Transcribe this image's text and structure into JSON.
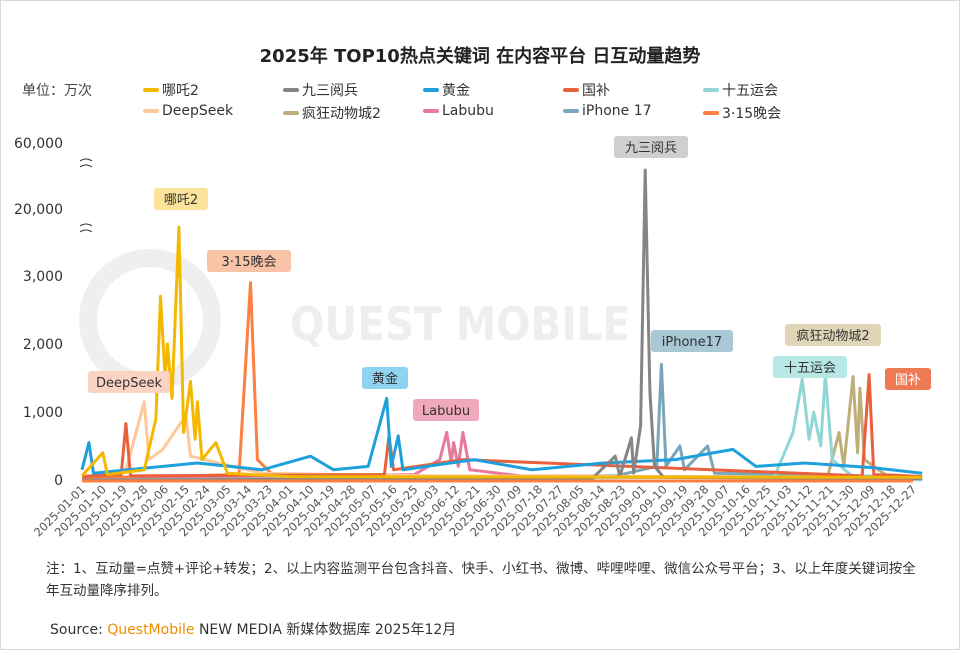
{
  "title": "2025年 TOP10热点关键词 在内容平台 日互动量趋势",
  "unit": "单位：万次",
  "notes": "注：1、互动量=点赞+评论+转发；2、以上内容监测平台包含抖音、快手、小红书、微博、哔哩哔哩、微信公众号平台；3、以上年度关键词按全年互动量降序排列。",
  "source": {
    "label": "Source:",
    "brand": "QuestMobile",
    "rest": "NEW MEDIA 新媒体数据库 2025年12月"
  },
  "watermark": "QUEST MOBILE",
  "chart_data": {
    "type": "line",
    "title": "2025年 TOP10热点关键词 在内容平台 日互动量趋势",
    "ylabel": "单位：万次",
    "y_ticks": [
      "0",
      "1,000",
      "2,000",
      "3,000",
      "20,000",
      "60,000"
    ],
    "y_scale": "broken axis: 0–3,000 linear, then 20,000 and 60,000",
    "x_ticks": [
      "2025-01-01",
      "2025-01-10",
      "2025-01-19",
      "2025-01-28",
      "2025-02-06",
      "2025-02-15",
      "2025-02-24",
      "2025-03-05",
      "2025-03-14",
      "2025-03-23",
      "2025-04-01",
      "2025-04-10",
      "2025-04-19",
      "2025-04-28",
      "2025-05-07",
      "2025-05-16",
      "2025-05-25",
      "2025-06-03",
      "2025-06-12",
      "2025-06-21",
      "2025-06-30",
      "2025-07-09",
      "2025-07-18",
      "2025-07-27",
      "2025-08-05",
      "2025-08-14",
      "2025-08-23",
      "2025-09-01",
      "2025-09-10",
      "2025-09-19",
      "2025-09-28",
      "2025-10-07",
      "2025-10-16",
      "2025-10-25",
      "2025-11-03",
      "2025-11-12",
      "2025-11-21",
      "2025-11-30",
      "2025-12-09",
      "2025-12-18",
      "2025-12-27"
    ],
    "legend_position": "top",
    "series": [
      {
        "name": "哪吒2",
        "color": "#f5b800",
        "callout": "哪吒2",
        "callout_bg": "#fbe39a",
        "points": [
          [
            "2025-01-01",
            60
          ],
          [
            "2025-01-10",
            400
          ],
          [
            "2025-01-12",
            80
          ],
          [
            "2025-01-28",
            150
          ],
          [
            "2025-02-02",
            900
          ],
          [
            "2025-02-04",
            2700
          ],
          [
            "2025-02-06",
            1500
          ],
          [
            "2025-02-07",
            2000
          ],
          [
            "2025-02-09",
            1200
          ],
          [
            "2025-02-12",
            15400
          ],
          [
            "2025-02-14",
            700
          ],
          [
            "2025-02-17",
            1450
          ],
          [
            "2025-02-19",
            600
          ],
          [
            "2025-02-20",
            1150
          ],
          [
            "2025-02-22",
            300
          ],
          [
            "2025-02-28",
            550
          ],
          [
            "2025-03-05",
            100
          ],
          [
            "2025-04-01",
            50
          ],
          [
            "2025-12-31",
            40
          ]
        ]
      },
      {
        "name": "九三阅兵",
        "color": "#858585",
        "callout": "九三阅兵",
        "callout_bg": "#cfcfcf",
        "points": [
          [
            "2025-01-01",
            0
          ],
          [
            "2025-08-10",
            20
          ],
          [
            "2025-08-20",
            350
          ],
          [
            "2025-08-22",
            50
          ],
          [
            "2025-08-27",
            620
          ],
          [
            "2025-08-28",
            100
          ],
          [
            "2025-08-31",
            800
          ],
          [
            "2025-09-02",
            43600
          ],
          [
            "2025-09-04",
            1300
          ],
          [
            "2025-09-06",
            200
          ],
          [
            "2025-09-10",
            40
          ],
          [
            "2025-12-31",
            20
          ]
        ]
      },
      {
        "name": "黄金",
        "color": "#1ea0dc",
        "callout": "黄金",
        "callout_bg": "#8fd3f2",
        "points": [
          [
            "2025-01-01",
            150
          ],
          [
            "2025-01-04",
            550
          ],
          [
            "2025-01-06",
            100
          ],
          [
            "2025-02-20",
            250
          ],
          [
            "2025-03-20",
            150
          ],
          [
            "2025-04-10",
            350
          ],
          [
            "2025-04-20",
            150
          ],
          [
            "2025-05-05",
            200
          ],
          [
            "2025-05-13",
            1200
          ],
          [
            "2025-05-15",
            200
          ],
          [
            "2025-05-18",
            650
          ],
          [
            "2025-05-20",
            150
          ],
          [
            "2025-06-20",
            300
          ],
          [
            "2025-07-15",
            150
          ],
          [
            "2025-08-15",
            250
          ],
          [
            "2025-09-15",
            300
          ],
          [
            "2025-10-10",
            450
          ],
          [
            "2025-10-20",
            200
          ],
          [
            "2025-11-10",
            250
          ],
          [
            "2025-12-10",
            180
          ],
          [
            "2025-12-31",
            100
          ]
        ]
      },
      {
        "name": "国补",
        "color": "#e8603c",
        "callout": "国补",
        "callout_bg": "#ee7a55",
        "points": [
          [
            "2025-01-01",
            50
          ],
          [
            "2025-01-18",
            80
          ],
          [
            "2025-01-20",
            830
          ],
          [
            "2025-01-22",
            60
          ],
          [
            "2025-05-12",
            80
          ],
          [
            "2025-05-14",
            650
          ],
          [
            "2025-05-16",
            150
          ],
          [
            "2025-06-15",
            300
          ],
          [
            "2025-12-05",
            60
          ],
          [
            "2025-12-08",
            1550
          ],
          [
            "2025-12-10",
            80
          ],
          [
            "2025-12-31",
            50
          ]
        ]
      },
      {
        "name": "十五运会",
        "color": "#8fd6d4",
        "callout": "十五运会",
        "callout_bg": "#b8e8e6",
        "points": [
          [
            "2025-01-01",
            0
          ],
          [
            "2025-10-28",
            50
          ],
          [
            "2025-11-05",
            700
          ],
          [
            "2025-11-09",
            1480
          ],
          [
            "2025-11-12",
            600
          ],
          [
            "2025-11-14",
            1000
          ],
          [
            "2025-11-17",
            500
          ],
          [
            "2025-11-19",
            1550
          ],
          [
            "2025-11-22",
            300
          ],
          [
            "2025-12-01",
            50
          ],
          [
            "2025-12-31",
            0
          ]
        ]
      },
      {
        "name": "DeepSeek",
        "color": "#ffc89a",
        "callout": "DeepSeek",
        "callout_bg": "#fad3c3",
        "points": [
          [
            "2025-01-01",
            50
          ],
          [
            "2025-01-20",
            150
          ],
          [
            "2025-01-28",
            1150
          ],
          [
            "2025-01-30",
            300
          ],
          [
            "2025-02-05",
            450
          ],
          [
            "2025-02-15",
            950
          ],
          [
            "2025-02-17",
            350
          ],
          [
            "2025-03-01",
            250
          ],
          [
            "2025-03-20",
            100
          ],
          [
            "2025-06-01",
            60
          ],
          [
            "2025-12-31",
            40
          ]
        ]
      },
      {
        "name": "疯狂动物城2",
        "color": "#bfae78",
        "callout": "疯狂动物城2",
        "callout_bg": "#e0d6b7",
        "points": [
          [
            "2025-01-01",
            0
          ],
          [
            "2025-11-20",
            50
          ],
          [
            "2025-11-25",
            700
          ],
          [
            "2025-11-27",
            200
          ],
          [
            "2025-12-01",
            1520
          ],
          [
            "2025-12-03",
            400
          ],
          [
            "2025-12-04",
            1350
          ],
          [
            "2025-12-06",
            300
          ],
          [
            "2025-12-15",
            80
          ],
          [
            "2025-12-31",
            50
          ]
        ]
      },
      {
        "name": "Labubu",
        "color": "#e8799a",
        "callout": "Labubu",
        "callout_bg": "#f0a9bc",
        "points": [
          [
            "2025-01-01",
            0
          ],
          [
            "2025-05-25",
            80
          ],
          [
            "2025-06-05",
            300
          ],
          [
            "2025-06-08",
            700
          ],
          [
            "2025-06-10",
            250
          ],
          [
            "2025-06-11",
            550
          ],
          [
            "2025-06-13",
            200
          ],
          [
            "2025-06-15",
            700
          ],
          [
            "2025-06-18",
            150
          ],
          [
            "2025-07-10",
            60
          ],
          [
            "2025-12-31",
            30
          ]
        ]
      },
      {
        "name": "iPhone 17",
        "color": "#7ba6b8",
        "callout": "iPhone17",
        "callout_bg": "#a9c7d4",
        "points": [
          [
            "2025-01-01",
            0
          ],
          [
            "2025-08-20",
            60
          ],
          [
            "2025-09-07",
            200
          ],
          [
            "2025-09-09",
            1700
          ],
          [
            "2025-09-11",
            200
          ],
          [
            "2025-09-17",
            500
          ],
          [
            "2025-09-19",
            150
          ],
          [
            "2025-09-29",
            500
          ],
          [
            "2025-10-02",
            100
          ],
          [
            "2025-12-31",
            40
          ]
        ]
      },
      {
        "name": "3·15晚会",
        "color": "#ff7f41",
        "callout": "3·15晚会",
        "callout_bg": "#f9c3a8",
        "points": [
          [
            "2025-01-01",
            30
          ],
          [
            "2025-03-10",
            80
          ],
          [
            "2025-03-15",
            2900
          ],
          [
            "2025-03-18",
            300
          ],
          [
            "2025-03-25",
            60
          ],
          [
            "2025-12-31",
            20
          ]
        ]
      }
    ]
  }
}
